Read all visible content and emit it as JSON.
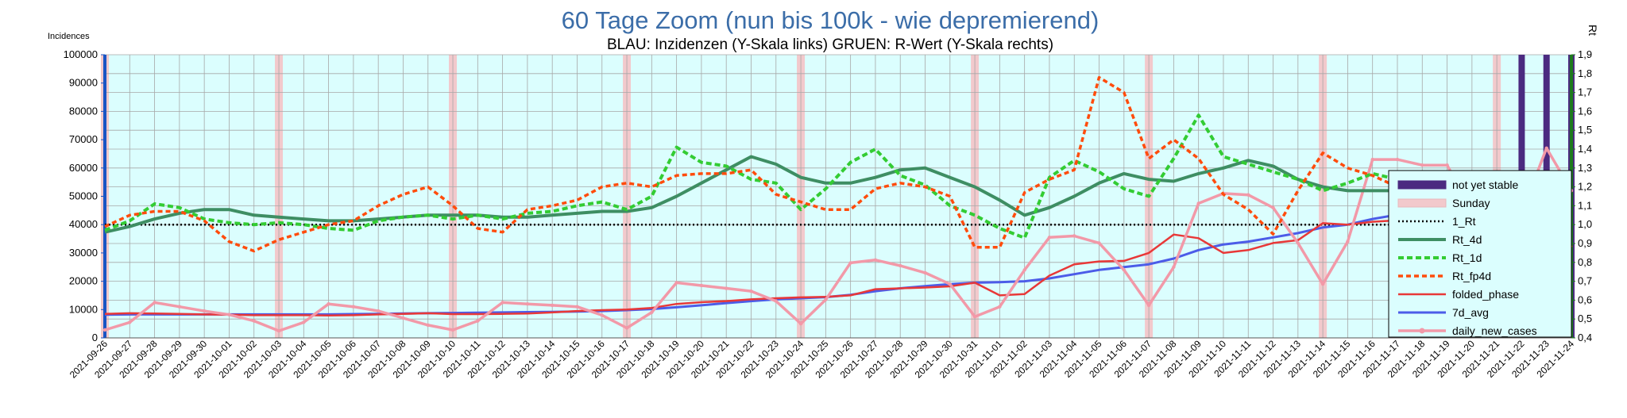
{
  "chart_data": {
    "type": "line",
    "title": "60 Tage Zoom  (nun bis 100k - wie depremierend)",
    "subtitle": "BLAU: Inzidenzen (Y-Skala links)     GRUEN: R-Wert (Y-Skala rechts)",
    "ylabel_left": "Incidences",
    "ylabel_right": "Rt",
    "ylim_left": [
      0,
      100000
    ],
    "ylim_right": [
      0.4,
      1.9
    ],
    "yticks_left": [
      "0",
      "10000",
      "20000",
      "30000",
      "40000",
      "50000",
      "60000",
      "70000",
      "80000",
      "90000",
      "100000"
    ],
    "yticks_right": [
      "0,4",
      "0,5",
      "0,6",
      "0,7",
      "0,8",
      "0,9",
      "1,0",
      "1,1",
      "1,2",
      "1,3",
      "1,4",
      "1,5",
      "1,6",
      "1,7",
      "1,8",
      "1,9"
    ],
    "grid": true,
    "legend_position": "right",
    "x": [
      "2021-09-26",
      "2021-09-27",
      "2021-09-28",
      "2021-09-29",
      "2021-09-30",
      "2021-10-01",
      "2021-10-02",
      "2021-10-03",
      "2021-10-04",
      "2021-10-05",
      "2021-10-06",
      "2021-10-07",
      "2021-10-08",
      "2021-10-09",
      "2021-10-10",
      "2021-10-11",
      "2021-10-12",
      "2021-10-13",
      "2021-10-14",
      "2021-10-15",
      "2021-10-16",
      "2021-10-17",
      "2021-10-18",
      "2021-10-19",
      "2021-10-20",
      "2021-10-21",
      "2021-10-22",
      "2021-10-23",
      "2021-10-24",
      "2021-10-25",
      "2021-10-26",
      "2021-10-27",
      "2021-10-28",
      "2021-10-29",
      "2021-10-30",
      "2021-10-31",
      "2021-11-01",
      "2021-11-02",
      "2021-11-03",
      "2021-11-04",
      "2021-11-05",
      "2021-11-06",
      "2021-11-07",
      "2021-11-08",
      "2021-11-09",
      "2021-11-10",
      "2021-11-11",
      "2021-11-12",
      "2021-11-13",
      "2021-11-14",
      "2021-11-15",
      "2021-11-16",
      "2021-11-17",
      "2021-11-18",
      "2021-11-19",
      "2021-11-20",
      "2021-11-21",
      "2021-11-22",
      "2021-11-23",
      "2021-11-24"
    ],
    "sundays": [
      "2021-09-26",
      "2021-10-03",
      "2021-10-10",
      "2021-10-17",
      "2021-10-24",
      "2021-10-31",
      "2021-11-07",
      "2021-11-14",
      "2021-11-21"
    ],
    "not_yet_stable": [
      "2021-11-22",
      "2021-11-23",
      "2021-11-24"
    ],
    "series": [
      {
        "name": "not yet stable",
        "axis": "left",
        "color": "#4b2a80",
        "style": "bar"
      },
      {
        "name": "Sunday",
        "axis": "left",
        "color": "#f2c9cc",
        "style": "bar"
      },
      {
        "name": "1_Rt",
        "axis": "right",
        "color": "#000000",
        "style": "dotted",
        "values": [
          1.0,
          1.0,
          1.0,
          1.0,
          1.0,
          1.0,
          1.0,
          1.0,
          1.0,
          1.0,
          1.0,
          1.0,
          1.0,
          1.0,
          1.0,
          1.0,
          1.0,
          1.0,
          1.0,
          1.0,
          1.0,
          1.0,
          1.0,
          1.0,
          1.0,
          1.0,
          1.0,
          1.0,
          1.0,
          1.0,
          1.0,
          1.0,
          1.0,
          1.0,
          1.0,
          1.0,
          1.0,
          1.0,
          1.0,
          1.0,
          1.0,
          1.0,
          1.0,
          1.0,
          1.0,
          1.0,
          1.0,
          1.0,
          1.0,
          1.0,
          1.0,
          1.0,
          1.0,
          1.0,
          1.0,
          1.0,
          1.0,
          1.0,
          1.0,
          1.0
        ]
      },
      {
        "name": "Rt_4d",
        "axis": "right",
        "color": "#3e8e63",
        "style": "solid",
        "values": [
          0.96,
          0.99,
          1.03,
          1.06,
          1.08,
          1.08,
          1.05,
          1.04,
          1.03,
          1.02,
          1.02,
          1.03,
          1.04,
          1.05,
          1.05,
          1.05,
          1.04,
          1.04,
          1.05,
          1.06,
          1.07,
          1.07,
          1.09,
          1.15,
          1.22,
          1.29,
          1.36,
          1.32,
          1.25,
          1.22,
          1.22,
          1.25,
          1.29,
          1.3,
          1.25,
          1.2,
          1.13,
          1.05,
          1.09,
          1.15,
          1.22,
          1.27,
          1.24,
          1.23,
          1.27,
          1.3,
          1.34,
          1.31,
          1.24,
          1.2,
          1.18,
          1.18,
          1.18,
          1.19,
          1.2,
          1.18,
          1.16,
          1.15,
          1.13,
          1.07
        ]
      },
      {
        "name": "Rt_1d",
        "axis": "right",
        "color": "#33cc33",
        "style": "dashed",
        "values": [
          0.97,
          1.02,
          1.11,
          1.09,
          1.03,
          1.01,
          1.0,
          1.01,
          1.0,
          0.98,
          0.97,
          1.02,
          1.04,
          1.05,
          1.03,
          1.05,
          1.03,
          1.06,
          1.07,
          1.1,
          1.12,
          1.08,
          1.15,
          1.41,
          1.33,
          1.31,
          1.24,
          1.22,
          1.08,
          1.19,
          1.33,
          1.4,
          1.26,
          1.21,
          1.1,
          1.05,
          0.98,
          0.93,
          1.25,
          1.34,
          1.28,
          1.19,
          1.15,
          1.35,
          1.58,
          1.36,
          1.32,
          1.28,
          1.24,
          1.18,
          1.22,
          1.27,
          1.24,
          1.21,
          1.24,
          1.15,
          1.08,
          1.12,
          1.08,
          0.91
        ]
      },
      {
        "name": "Rt_fp4d",
        "axis": "right",
        "color": "#ff4c0c",
        "style": "dashed",
        "values": [
          0.99,
          1.05,
          1.07,
          1.07,
          1.02,
          0.91,
          0.86,
          0.92,
          0.96,
          1.0,
          1.02,
          1.1,
          1.16,
          1.2,
          1.1,
          0.98,
          0.96,
          1.08,
          1.1,
          1.13,
          1.2,
          1.22,
          1.2,
          1.26,
          1.27,
          1.27,
          1.29,
          1.16,
          1.12,
          1.08,
          1.08,
          1.19,
          1.22,
          1.2,
          1.15,
          0.88,
          0.88,
          1.17,
          1.24,
          1.29,
          1.78,
          1.7,
          1.35,
          1.45,
          1.35,
          1.16,
          1.08,
          0.95,
          1.18,
          1.38,
          1.3,
          1.26,
          1.2,
          1.09,
          1.2,
          1.25,
          1.19,
          1.22,
          1.08,
          0.88
        ]
      },
      {
        "name": "folded_phase",
        "axis": "left",
        "color": "#e83838",
        "style": "solid",
        "values": [
          8500,
          8700,
          8600,
          8500,
          8300,
          8200,
          8000,
          8000,
          8000,
          7900,
          8000,
          8300,
          8500,
          8700,
          8400,
          8400,
          8500,
          8600,
          9000,
          9500,
          9800,
          10000,
          10600,
          12000,
          12600,
          13000,
          13600,
          14000,
          14300,
          14500,
          15000,
          17200,
          17500,
          17800,
          18200,
          19500,
          15000,
          15500,
          22000,
          26000,
          27000,
          27200,
          30000,
          36500,
          35200,
          30000,
          31000,
          33500,
          34500,
          40500,
          40000,
          41000,
          41500,
          43000,
          48000,
          47000,
          49000,
          50500,
          49500,
          46000
        ]
      },
      {
        "name": "7d_avg",
        "axis": "left",
        "color": "#4c5ce8",
        "style": "solid",
        "values": [
          8200,
          8300,
          8300,
          8300,
          8300,
          8300,
          8300,
          8300,
          8300,
          8300,
          8400,
          8500,
          8600,
          8700,
          8800,
          8900,
          9000,
          9100,
          9200,
          9300,
          9500,
          9800,
          10200,
          10800,
          11500,
          12300,
          13000,
          13600,
          14000,
          14400,
          15200,
          16500,
          17500,
          18300,
          19000,
          19500,
          19700,
          20000,
          21000,
          22500,
          24000,
          25000,
          26000,
          28000,
          31000,
          33000,
          34000,
          35500,
          37000,
          39000,
          40000,
          42000,
          43500,
          45500,
          48000,
          49000,
          50000,
          51000,
          51500,
          52000
        ]
      },
      {
        "name": "daily_new_cases",
        "axis": "left",
        "color": "#f299a8",
        "style": "marker",
        "values": [
          2800,
          5500,
          12500,
          11000,
          9500,
          8200,
          6000,
          2500,
          5500,
          12000,
          11000,
          9500,
          7000,
          4500,
          2800,
          6000,
          12500,
          12000,
          11500,
          11000,
          8000,
          3500,
          9000,
          19500,
          18500,
          17500,
          16500,
          13000,
          5000,
          13500,
          26500,
          27500,
          25500,
          23000,
          19000,
          7500,
          11000,
          24000,
          35500,
          36000,
          33500,
          24000,
          11500,
          25000,
          47500,
          51000,
          50500,
          46000,
          33500,
          19000,
          34000,
          63000,
          63000,
          61000,
          61000,
          45000,
          24000,
          44000,
          67000,
          52000
        ]
      }
    ]
  }
}
